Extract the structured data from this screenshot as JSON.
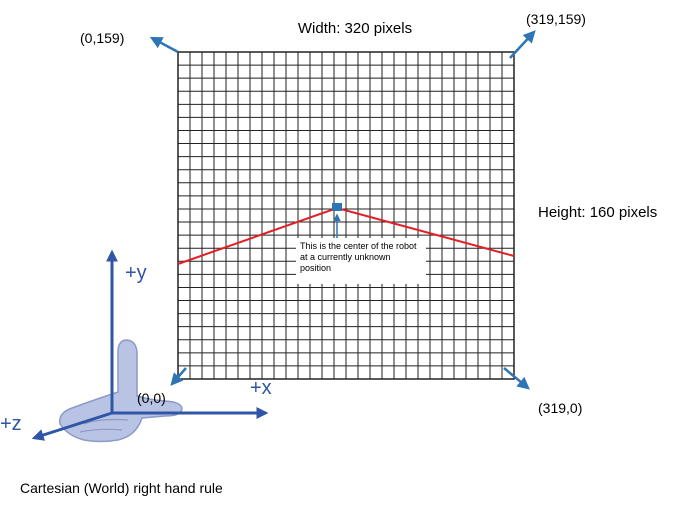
{
  "labels": {
    "width_label": "Width: 320 pixels",
    "height_label": "Height: 160 pixels",
    "corner_top_left": "(0,159)",
    "corner_top_right": "(319,159)",
    "corner_bottom_left": "(0,0)",
    "corner_bottom_right": "(319,0)",
    "center_note": "This is the center of the robot at a currently unknown position",
    "axis_x": "+x",
    "axis_y": "+y",
    "axis_z": "+z",
    "caption": "Cartesian (World) right hand rule"
  },
  "colors": {
    "grid_line": "#222222",
    "red_line": "#e31e24",
    "arrow_blue": "#2e75b6",
    "axis_blue": "#2f56a6",
    "hand_fill": "#b9c3e4",
    "robot_marker": "#2e75b6"
  },
  "grid": {
    "columns": 28,
    "rows": 25
  }
}
